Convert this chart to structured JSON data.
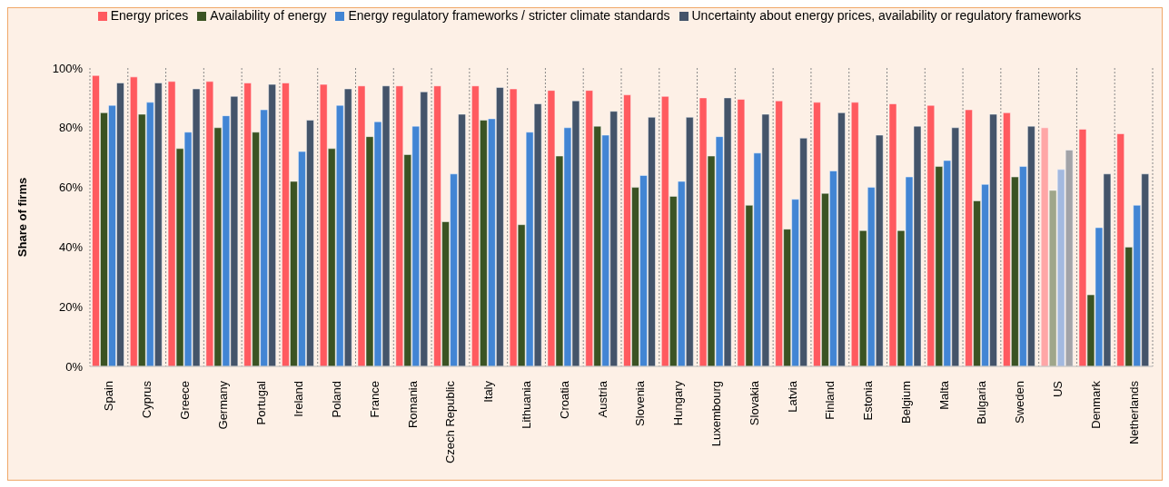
{
  "chart_data": {
    "type": "bar",
    "ylabel": "Share of firms",
    "categories": [
      "Spain",
      "Cyprus",
      "Greece",
      "Germany",
      "Portugal",
      "Ireland",
      "Poland",
      "France",
      "Romania",
      "Czech Republic",
      "Italy",
      "Lithuania",
      "Croatia",
      "Austria",
      "Slovenia",
      "Hungary",
      "Luxembourg",
      "Slovakia",
      "Latvia",
      "Finland",
      "Estonia",
      "Belgium",
      "Malta",
      "Bulgaria",
      "Sweden",
      "US",
      "Denmark",
      "Netherlands"
    ],
    "series": [
      {
        "name": "Energy prices",
        "color": "#ff5a5f",
        "colors": [
          "#ff5a5f",
          "#ff5a5f",
          "#ff5a5f",
          "#ff5a5f",
          "#ff5a5f",
          "#ff5a5f",
          "#ff5a5f",
          "#ff5a5f",
          "#ff5a5f",
          "#ff5a5f",
          "#ff5a5f",
          "#ff5a5f",
          "#ff5a5f",
          "#ff5a5f",
          "#ff5a5f",
          "#ff5a5f",
          "#ff5a5f",
          "#ff5a5f",
          "#ff5a5f",
          "#ff5a5f",
          "#ff5a5f",
          "#ff5a5f",
          "#ff5a5f",
          "#ff5a5f",
          "#ff5a5f",
          "#ffa6a6",
          "#ff5a5f",
          "#ff5a5f"
        ],
        "values": [
          97.5,
          97,
          95.5,
          95.5,
          95,
          95,
          94.5,
          94,
          94,
          94,
          94,
          93,
          92.5,
          92.5,
          91,
          90.5,
          90,
          89.5,
          89,
          88.5,
          88.5,
          88,
          87.5,
          86,
          85,
          80,
          79.5,
          78
        ]
      },
      {
        "name": "Availability of energy",
        "color": "#3b5323",
        "colors": [
          "#3b5323",
          "#3b5323",
          "#3b5323",
          "#3b5323",
          "#3b5323",
          "#3b5323",
          "#3b5323",
          "#3b5323",
          "#3b5323",
          "#3b5323",
          "#3b5323",
          "#3b5323",
          "#3b5323",
          "#3b5323",
          "#3b5323",
          "#3b5323",
          "#3b5323",
          "#3b5323",
          "#3b5323",
          "#3b5323",
          "#3b5323",
          "#3b5323",
          "#3b5323",
          "#3b5323",
          "#3b5323",
          "#9fa68a",
          "#3b5323",
          "#3b5323"
        ],
        "values": [
          85,
          84.5,
          73,
          80,
          78.5,
          62,
          73,
          77,
          71,
          48.5,
          82.5,
          47.5,
          70.5,
          80.5,
          60,
          57,
          70.5,
          54,
          46,
          58,
          45.5,
          45.5,
          67,
          55.5,
          63.5,
          59,
          24,
          40
        ]
      },
      {
        "name": "Energy regulatory frameworks / stricter climate standards",
        "color": "#4285d4",
        "colors": [
          "#4285d4",
          "#4285d4",
          "#4285d4",
          "#4285d4",
          "#4285d4",
          "#4285d4",
          "#4285d4",
          "#4285d4",
          "#4285d4",
          "#4285d4",
          "#4285d4",
          "#4285d4",
          "#4285d4",
          "#4285d4",
          "#4285d4",
          "#4285d4",
          "#4285d4",
          "#4285d4",
          "#4285d4",
          "#4285d4",
          "#4285d4",
          "#4285d4",
          "#4285d4",
          "#4285d4",
          "#4285d4",
          "#a3b9df",
          "#4285d4",
          "#4285d4"
        ],
        "values": [
          87.5,
          88.5,
          78.5,
          84,
          86,
          72,
          87.5,
          82,
          80.5,
          64.5,
          83,
          78.5,
          80,
          77.5,
          64,
          62,
          77,
          71.5,
          56,
          65.5,
          60,
          63.5,
          69,
          61,
          67,
          66,
          46.5,
          54
        ]
      },
      {
        "name": "Uncertainty about energy prices, availability or regulatory frameworks",
        "color": "#44546a",
        "colors": [
          "#44546a",
          "#44546a",
          "#44546a",
          "#44546a",
          "#44546a",
          "#44546a",
          "#44546a",
          "#44546a",
          "#44546a",
          "#44546a",
          "#44546a",
          "#44546a",
          "#44546a",
          "#44546a",
          "#44546a",
          "#44546a",
          "#44546a",
          "#44546a",
          "#44546a",
          "#44546a",
          "#44546a",
          "#44546a",
          "#44546a",
          "#44546a",
          "#44546a",
          "#a2a3a8",
          "#44546a",
          "#44546a"
        ],
        "values": [
          95,
          95,
          93,
          90.5,
          94.5,
          82.5,
          93,
          94,
          92,
          84.5,
          93.5,
          88,
          89,
          85.5,
          83.5,
          83.5,
          90,
          84.5,
          76.5,
          85,
          77.5,
          80.5,
          80,
          84.5,
          80.5,
          72.5,
          64.5,
          64.5
        ]
      }
    ],
    "ylim": [
      0,
      100
    ],
    "yticks": [
      {
        "value": 0,
        "label": "0%"
      },
      {
        "value": 20,
        "label": "20%"
      },
      {
        "value": 40,
        "label": "40%"
      },
      {
        "value": 60,
        "label": "60%"
      },
      {
        "value": 80,
        "label": "80%"
      },
      {
        "value": 100,
        "label": "100%"
      }
    ],
    "grid": "x",
    "legend": "top"
  }
}
